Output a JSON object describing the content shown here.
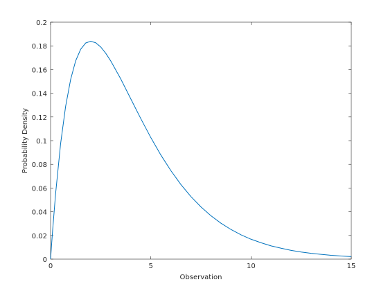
{
  "chart_data": {
    "type": "line",
    "xlabel": "Observation",
    "ylabel": "Probability Density",
    "x": [
      0,
      0.05,
      0.1,
      0.25,
      0.5,
      0.75,
      1,
      1.25,
      1.5,
      1.75,
      2,
      2.25,
      2.5,
      2.75,
      3,
      3.5,
      4,
      4.5,
      5,
      5.5,
      6,
      6.5,
      7,
      7.5,
      8,
      8.5,
      9,
      9.5,
      10,
      10.5,
      11,
      11.5,
      12,
      12.5,
      13,
      13.5,
      14,
      14.5,
      15
    ],
    "values": [
      0,
      0.0122,
      0.0238,
      0.0552,
      0.0974,
      0.1289,
      0.1516,
      0.1673,
      0.1771,
      0.1824,
      0.1839,
      0.1826,
      0.1791,
      0.1738,
      0.1673,
      0.1521,
      0.1353,
      0.1186,
      0.1026,
      0.0879,
      0.0747,
      0.063,
      0.0528,
      0.0441,
      0.0366,
      0.0303,
      0.025,
      0.0205,
      0.0168,
      0.0138,
      0.0112,
      0.0092,
      0.0074,
      0.006,
      0.0049,
      0.004,
      0.0032,
      0.0026,
      0.0021
    ],
    "color": "#0072bd",
    "xlim": [
      0,
      15
    ],
    "xticks": [
      0,
      5,
      10,
      15
    ],
    "ylim": [
      0,
      0.2
    ],
    "yticks": [
      0,
      0.02,
      0.04,
      0.06,
      0.08,
      0.1,
      0.12,
      0.14,
      0.16,
      0.18,
      0.2
    ]
  }
}
